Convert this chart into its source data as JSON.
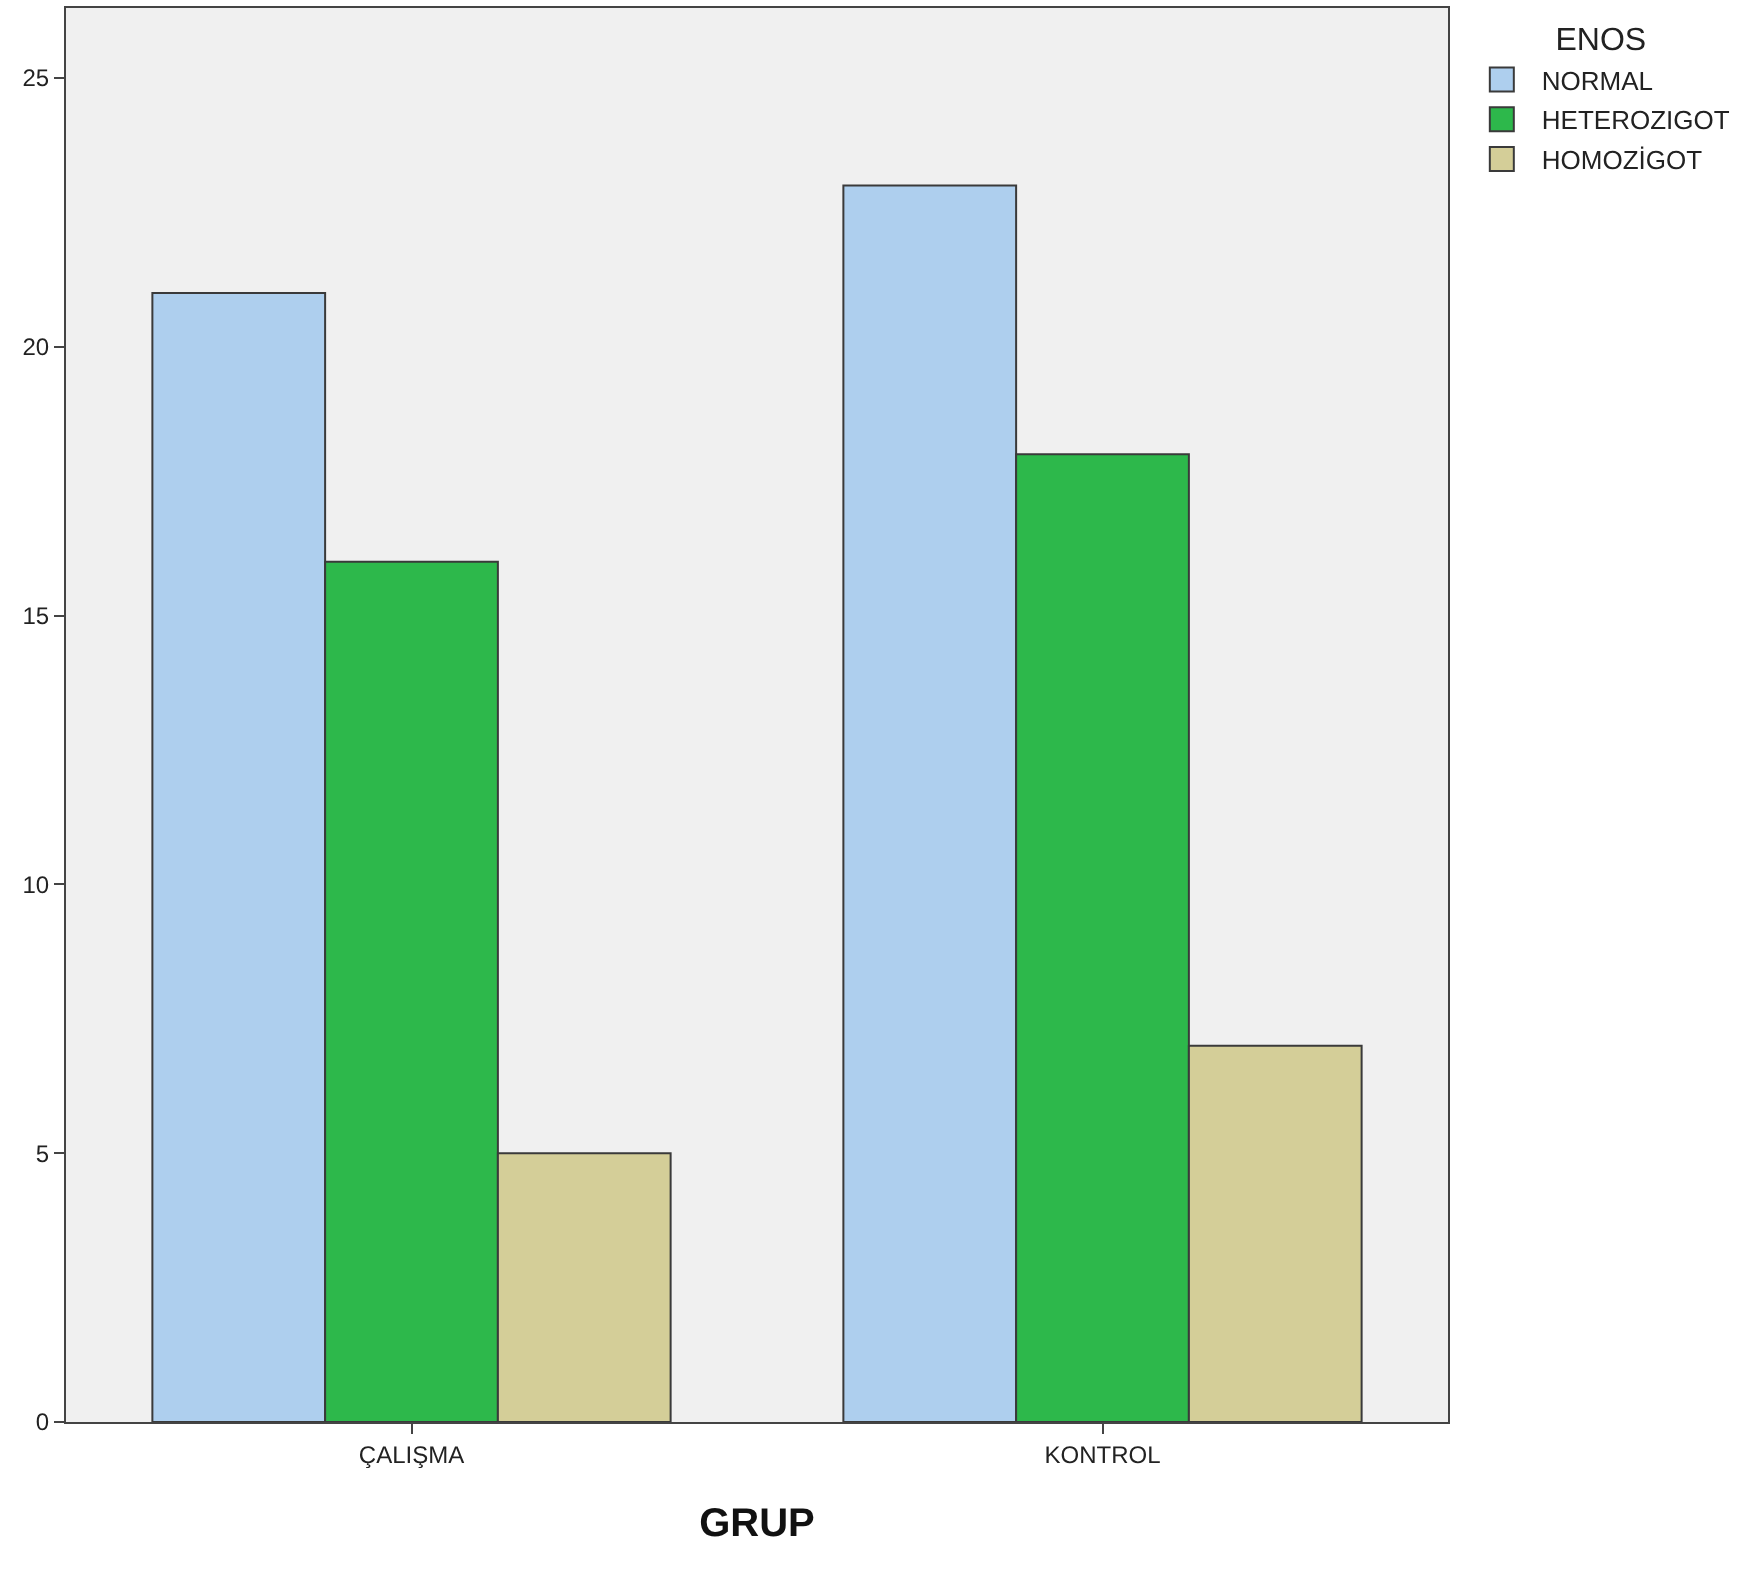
{
  "chart_data": {
    "type": "bar",
    "xlabel": "GRUP",
    "legend_title": "ENOS",
    "categories": [
      "ÇALIŞMA",
      "KONTROL"
    ],
    "series": [
      {
        "name": "NORMAL",
        "color": "#aecfee",
        "values": [
          21,
          23
        ]
      },
      {
        "name": "HETEROZIGOT",
        "color": "#2db84b",
        "values": [
          16,
          18
        ]
      },
      {
        "name": "HOMOZİGOT",
        "color": "#d4ce98",
        "values": [
          5,
          7
        ]
      }
    ],
    "ylim": [
      0,
      26.3
    ],
    "yticks": [
      0,
      5,
      10,
      15,
      20,
      25
    ],
    "grid": false,
    "legend": "top right"
  }
}
